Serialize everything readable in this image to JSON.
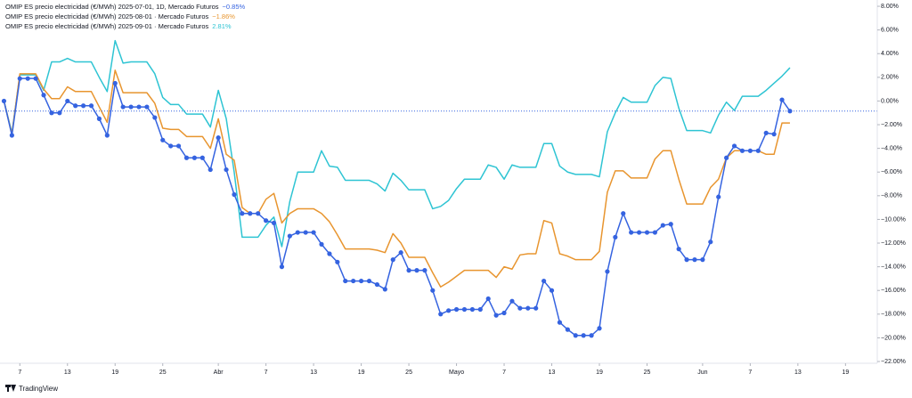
{
  "chart_data": {
    "type": "line",
    "watermark": "TradingView",
    "x": [
      0,
      1,
      2,
      3,
      4,
      5,
      6,
      7,
      8,
      9,
      10,
      11,
      12,
      13,
      14,
      15,
      16,
      17,
      18,
      19,
      20,
      21,
      22,
      23,
      24,
      25,
      26,
      27,
      28,
      29,
      30,
      31,
      32,
      33,
      34,
      35,
      36,
      37,
      38,
      39,
      40,
      41,
      42,
      43,
      44,
      45,
      46,
      47,
      48,
      49,
      50,
      51,
      52,
      53,
      54,
      55,
      56,
      57,
      58,
      59,
      60,
      61,
      62,
      63,
      64,
      65,
      66,
      67,
      68,
      69,
      70,
      71,
      72,
      73,
      74,
      75,
      76,
      77,
      78,
      79,
      80,
      81,
      82,
      83,
      84,
      85,
      86,
      87,
      88,
      89,
      90,
      91,
      92,
      93,
      94,
      95,
      96,
      97,
      98,
      99
    ],
    "xlim": [
      -0.5,
      110
    ],
    "xticks": [
      {
        "value": 2,
        "label": "7"
      },
      {
        "value": 8,
        "label": "13"
      },
      {
        "value": 14,
        "label": "19"
      },
      {
        "value": 20,
        "label": "25"
      },
      {
        "value": 27,
        "label": "Abr"
      },
      {
        "value": 33,
        "label": "7"
      },
      {
        "value": 39,
        "label": "13"
      },
      {
        "value": 45,
        "label": "19"
      },
      {
        "value": 51,
        "label": "25"
      },
      {
        "value": 57,
        "label": "Mayo"
      },
      {
        "value": 63,
        "label": "7"
      },
      {
        "value": 69,
        "label": "13"
      },
      {
        "value": 75,
        "label": "19"
      },
      {
        "value": 81,
        "label": "25"
      },
      {
        "value": 88,
        "label": "Jun"
      },
      {
        "value": 94,
        "label": "7"
      },
      {
        "value": 100,
        "label": "13"
      },
      {
        "value": 106,
        "label": "19"
      }
    ],
    "ylim": [
      -22.15,
      8.53
    ],
    "yticks": [
      {
        "value": 8,
        "label": "8.00%"
      },
      {
        "value": 6,
        "label": "6.00%"
      },
      {
        "value": 4,
        "label": "4.00%"
      },
      {
        "value": 2,
        "label": "2.00%"
      },
      {
        "value": 0,
        "label": "0.00%"
      },
      {
        "value": -2,
        "label": "−2.00%"
      },
      {
        "value": -4,
        "label": "−4.00%"
      },
      {
        "value": -6,
        "label": "−6.00%"
      },
      {
        "value": -8,
        "label": "−8.00%"
      },
      {
        "value": -10,
        "label": "−10.00%"
      },
      {
        "value": -12,
        "label": "−12.00%"
      },
      {
        "value": -14,
        "label": "−14.00%"
      },
      {
        "value": -16,
        "label": "−16.00%"
      },
      {
        "value": -18,
        "label": "−18.00%"
      },
      {
        "value": -20,
        "label": "−20.00%"
      },
      {
        "value": -22,
        "label": "−22.00%"
      }
    ],
    "grid": false,
    "series": [
      {
        "name": "OMIP ES precio electricidad (€/MWh) 2025-07-01, 1D, Mercado Futuros",
        "last_label": "−0.85%",
        "color": "#3563e0",
        "markers": true,
        "last_value_line": true,
        "values": [
          0,
          -2.9,
          1.9,
          1.9,
          1.9,
          0.5,
          -1.0,
          -1.0,
          0.0,
          -0.4,
          -0.4,
          -0.4,
          -1.5,
          -2.9,
          1.5,
          -0.5,
          -0.5,
          -0.5,
          -0.5,
          -1.4,
          -3.3,
          -3.8,
          -3.8,
          -4.8,
          -4.8,
          -4.8,
          -5.8,
          -3.1,
          -5.8,
          -7.9,
          -9.5,
          -9.5,
          -9.5,
          -10.1,
          -10.3,
          -14.0,
          -11.4,
          -11.1,
          -11.1,
          -11.1,
          -12.1,
          -12.9,
          -13.6,
          -15.2,
          -15.2,
          -15.2,
          -15.2,
          -15.5,
          -15.9,
          -13.4,
          -12.8,
          -14.3,
          -14.3,
          -14.3,
          -16.0,
          -18.0,
          -17.7,
          -17.6,
          -17.6,
          -17.6,
          -17.6,
          -16.7,
          -18.1,
          -17.9,
          -16.9,
          -17.5,
          -17.5,
          -17.5,
          -15.2,
          -16.0,
          -18.7,
          -19.3,
          -19.8,
          -19.8,
          -19.8,
          -19.2,
          -14.4,
          -11.5,
          -9.5,
          -11.1,
          -11.1,
          -11.1,
          -11.1,
          -10.5,
          -10.4,
          -12.5,
          -13.4,
          -13.4,
          -13.4,
          -11.9,
          -8.1,
          -4.8,
          -3.8,
          -4.2,
          -4.2,
          -4.2,
          -2.7,
          -2.8,
          0.1,
          -0.85
        ]
      },
      {
        "name": "OMIP ES precio electricidad (€/MWh) 2025-08-01 · Mercado Futuros",
        "last_label": "−1.86%",
        "color": "#e8952f",
        "markers": false,
        "values": [
          0,
          -2.8,
          2.3,
          2.3,
          2.3,
          1.0,
          0.2,
          0.2,
          1.2,
          0.8,
          0.8,
          0.8,
          -0.5,
          -1.8,
          2.6,
          0.7,
          0.7,
          0.7,
          0.7,
          -0.2,
          -2.3,
          -2.4,
          -2.4,
          -3.0,
          -3.0,
          -3.0,
          -4.0,
          -1.5,
          -4.5,
          -5.0,
          -9.0,
          -9.5,
          -9.5,
          -8.3,
          -7.8,
          -10.3,
          -9.5,
          -9.1,
          -9.1,
          -9.1,
          -9.5,
          -10.2,
          -11.3,
          -12.5,
          -12.5,
          -12.5,
          -12.5,
          -12.6,
          -12.8,
          -11.2,
          -12.0,
          -13.2,
          -13.2,
          -13.2,
          -14.5,
          -15.7,
          -15.3,
          -14.8,
          -14.3,
          -14.3,
          -14.3,
          -14.3,
          -14.9,
          -14.0,
          -14.2,
          -13.0,
          -12.9,
          -12.9,
          -10.1,
          -10.3,
          -12.9,
          -13.1,
          -13.4,
          -13.4,
          -13.4,
          -12.7,
          -7.7,
          -5.9,
          -5.9,
          -6.5,
          -6.5,
          -6.5,
          -4.9,
          -4.2,
          -4.2,
          -6.6,
          -8.7,
          -8.7,
          -8.7,
          -7.3,
          -6.6,
          -4.8,
          -4.2,
          -4.2,
          -4.2,
          -4.2,
          -4.5,
          -4.5,
          -1.86,
          -1.86
        ]
      },
      {
        "name": "OMIP ES precio electricidad (€/MWh) 2025-09-01 · Mercado Futuros",
        "last_label": "2.81%",
        "color": "#2ec4d3",
        "markers": false,
        "values": [
          0,
          -2.7,
          2.2,
          2.2,
          2.2,
          0.9,
          3.3,
          3.3,
          3.6,
          3.3,
          3.3,
          3.3,
          2.0,
          0.8,
          5.1,
          3.2,
          3.3,
          3.3,
          3.3,
          2.3,
          0.3,
          -0.3,
          -0.3,
          -1.1,
          -1.1,
          -1.1,
          -2.2,
          0.9,
          -1.5,
          -6.0,
          -11.5,
          -11.5,
          -11.5,
          -10.5,
          -9.8,
          -12.3,
          -8.5,
          -6.0,
          -6.0,
          -6.0,
          -4.2,
          -5.5,
          -5.6,
          -6.7,
          -6.7,
          -6.7,
          -6.7,
          -7.0,
          -7.6,
          -6.1,
          -6.7,
          -7.5,
          -7.5,
          -7.5,
          -9.1,
          -8.9,
          -8.4,
          -7.4,
          -6.6,
          -6.6,
          -6.6,
          -5.4,
          -5.6,
          -6.6,
          -5.4,
          -5.6,
          -5.6,
          -5.6,
          -3.6,
          -3.6,
          -5.5,
          -6.0,
          -6.2,
          -6.2,
          -6.2,
          -6.4,
          -2.6,
          -1.0,
          0.3,
          -0.1,
          -0.1,
          -0.1,
          1.3,
          2.0,
          1.9,
          -0.6,
          -2.5,
          -2.5,
          -2.5,
          -2.7,
          -1.2,
          -0.1,
          -0.8,
          0.4,
          0.4,
          0.4,
          0.9,
          1.5,
          2.1,
          2.81
        ]
      }
    ]
  }
}
